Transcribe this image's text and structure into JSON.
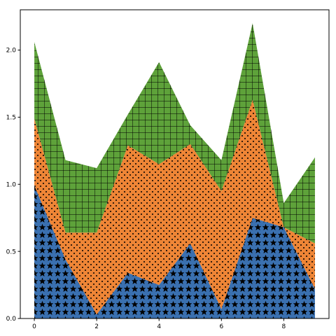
{
  "chart_data": {
    "type": "area",
    "stacked": true,
    "title": "",
    "xlabel": "",
    "ylabel": "",
    "xlim": [
      -0.45,
      9.45
    ],
    "ylim": [
      0,
      2.3
    ],
    "xticks": [
      0,
      2,
      4,
      6,
      8
    ],
    "yticks": [
      0.0,
      0.5,
      1.0,
      1.5,
      2.0
    ],
    "xtick_labels": [
      "0",
      "2",
      "4",
      "6",
      "8"
    ],
    "ytick_labels": [
      "0.0",
      "0.5",
      "1.0",
      "1.5",
      "2.0"
    ],
    "grid": false,
    "x": [
      0,
      1,
      2,
      3,
      4,
      5,
      6,
      7,
      8,
      9
    ],
    "series": [
      {
        "values": [
          0.99,
          0.44,
          0.03,
          0.34,
          0.25,
          0.56,
          0.07,
          0.75,
          0.68,
          0.22
        ],
        "color": "#3a70b0",
        "hatch": "stars"
      },
      {
        "values": [
          0.5,
          0.2,
          0.61,
          0.95,
          0.9,
          0.74,
          0.88,
          0.88,
          0.0,
          0.34
        ],
        "color": "#ee8536",
        "hatch": "dots"
      },
      {
        "values": [
          0.57,
          0.54,
          0.48,
          0.23,
          0.76,
          0.14,
          0.23,
          0.57,
          0.18,
          0.64
        ],
        "color": "#5ea23a",
        "hatch": "grid"
      }
    ]
  }
}
